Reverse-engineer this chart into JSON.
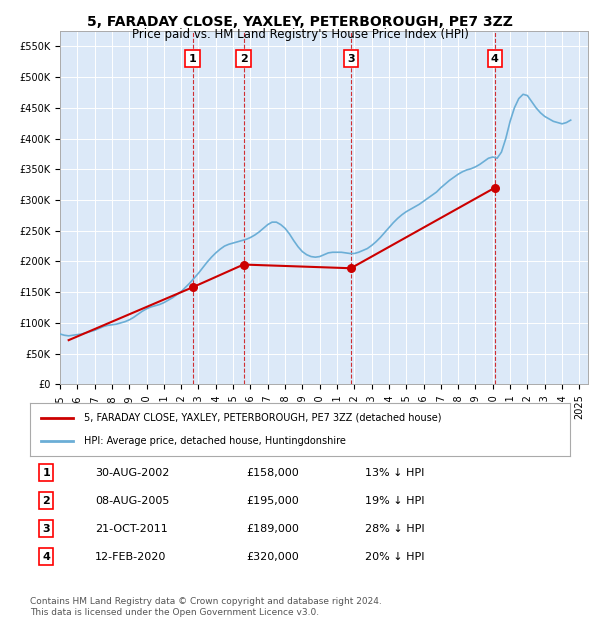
{
  "title": "5, FARADAY CLOSE, YAXLEY, PETERBOROUGH, PE7 3ZZ",
  "subtitle": "Price paid vs. HM Land Registry's House Price Index (HPI)",
  "ylabel": "",
  "ylim": [
    0,
    575000
  ],
  "yticks": [
    0,
    50000,
    100000,
    150000,
    200000,
    250000,
    300000,
    350000,
    400000,
    450000,
    500000,
    550000
  ],
  "background_color": "#dce9f8",
  "plot_bg": "#dce9f8",
  "hpi_color": "#6baed6",
  "price_color": "#cc0000",
  "dashed_line_color": "#cc0000",
  "sale_dates": [
    "2002-08-30",
    "2005-08-08",
    "2011-10-21",
    "2020-02-12"
  ],
  "sale_prices": [
    158000,
    195000,
    189000,
    320000
  ],
  "sale_labels": [
    "1",
    "2",
    "3",
    "4"
  ],
  "legend_price_label": "5, FARADAY CLOSE, YAXLEY, PETERBOROUGH, PE7 3ZZ (detached house)",
  "legend_hpi_label": "HPI: Average price, detached house, Huntingdonshire",
  "table_rows": [
    [
      "1",
      "30-AUG-2002",
      "£158,000",
      "13% ↓ HPI"
    ],
    [
      "2",
      "08-AUG-2005",
      "£195,000",
      "19% ↓ HPI"
    ],
    [
      "3",
      "21-OCT-2011",
      "£189,000",
      "28% ↓ HPI"
    ],
    [
      "4",
      "12-FEB-2020",
      "£320,000",
      "20% ↓ HPI"
    ]
  ],
  "footer": "Contains HM Land Registry data © Crown copyright and database right 2024.\nThis data is licensed under the Open Government Licence v3.0.",
  "hpi_x": [
    1995.0,
    1995.25,
    1995.5,
    1995.75,
    1996.0,
    1996.25,
    1996.5,
    1996.75,
    1997.0,
    1997.25,
    1997.5,
    1997.75,
    1998.0,
    1998.25,
    1998.5,
    1998.75,
    1999.0,
    1999.25,
    1999.5,
    1999.75,
    2000.0,
    2000.25,
    2000.5,
    2000.75,
    2001.0,
    2001.25,
    2001.5,
    2001.75,
    2002.0,
    2002.25,
    2002.5,
    2002.75,
    2003.0,
    2003.25,
    2003.5,
    2003.75,
    2004.0,
    2004.25,
    2004.5,
    2004.75,
    2005.0,
    2005.25,
    2005.5,
    2005.75,
    2006.0,
    2006.25,
    2006.5,
    2006.75,
    2007.0,
    2007.25,
    2007.5,
    2007.75,
    2008.0,
    2008.25,
    2008.5,
    2008.75,
    2009.0,
    2009.25,
    2009.5,
    2009.75,
    2010.0,
    2010.25,
    2010.5,
    2010.75,
    2011.0,
    2011.25,
    2011.5,
    2011.75,
    2012.0,
    2012.25,
    2012.5,
    2012.75,
    2013.0,
    2013.25,
    2013.5,
    2013.75,
    2014.0,
    2014.25,
    2014.5,
    2014.75,
    2015.0,
    2015.25,
    2015.5,
    2015.75,
    2016.0,
    2016.25,
    2016.5,
    2016.75,
    2017.0,
    2017.25,
    2017.5,
    2017.75,
    2018.0,
    2018.25,
    2018.5,
    2018.75,
    2019.0,
    2019.25,
    2019.5,
    2019.75,
    2020.0,
    2020.25,
    2020.5,
    2020.75,
    2021.0,
    2021.25,
    2021.5,
    2021.75,
    2022.0,
    2022.25,
    2022.5,
    2022.75,
    2023.0,
    2023.25,
    2023.5,
    2023.75,
    2024.0,
    2024.25,
    2024.5
  ],
  "hpi_y": [
    82000,
    80000,
    79000,
    80000,
    81000,
    82000,
    84000,
    86000,
    88000,
    91000,
    94000,
    96000,
    97000,
    98000,
    100000,
    102000,
    105000,
    109000,
    114000,
    119000,
    123000,
    126000,
    128000,
    130000,
    133000,
    137000,
    141000,
    146000,
    151000,
    158000,
    165000,
    173000,
    181000,
    190000,
    199000,
    207000,
    214000,
    220000,
    225000,
    228000,
    230000,
    232000,
    234000,
    236000,
    239000,
    243000,
    248000,
    254000,
    260000,
    264000,
    264000,
    260000,
    254000,
    245000,
    234000,
    224000,
    216000,
    211000,
    208000,
    207000,
    208000,
    211000,
    214000,
    215000,
    215000,
    215000,
    214000,
    213000,
    213000,
    215000,
    218000,
    221000,
    226000,
    232000,
    239000,
    247000,
    255000,
    263000,
    270000,
    276000,
    281000,
    285000,
    289000,
    293000,
    298000,
    303000,
    308000,
    313000,
    320000,
    326000,
    332000,
    337000,
    342000,
    346000,
    349000,
    351000,
    354000,
    358000,
    363000,
    368000,
    370000,
    368000,
    378000,
    400000,
    428000,
    450000,
    465000,
    472000,
    470000,
    460000,
    450000,
    442000,
    436000,
    432000,
    428000,
    426000,
    424000,
    426000,
    430000
  ],
  "price_x": [
    1995.5,
    2002.66,
    2005.6,
    2011.8,
    2020.12
  ],
  "price_y": [
    72000,
    158000,
    195000,
    189000,
    320000
  ]
}
